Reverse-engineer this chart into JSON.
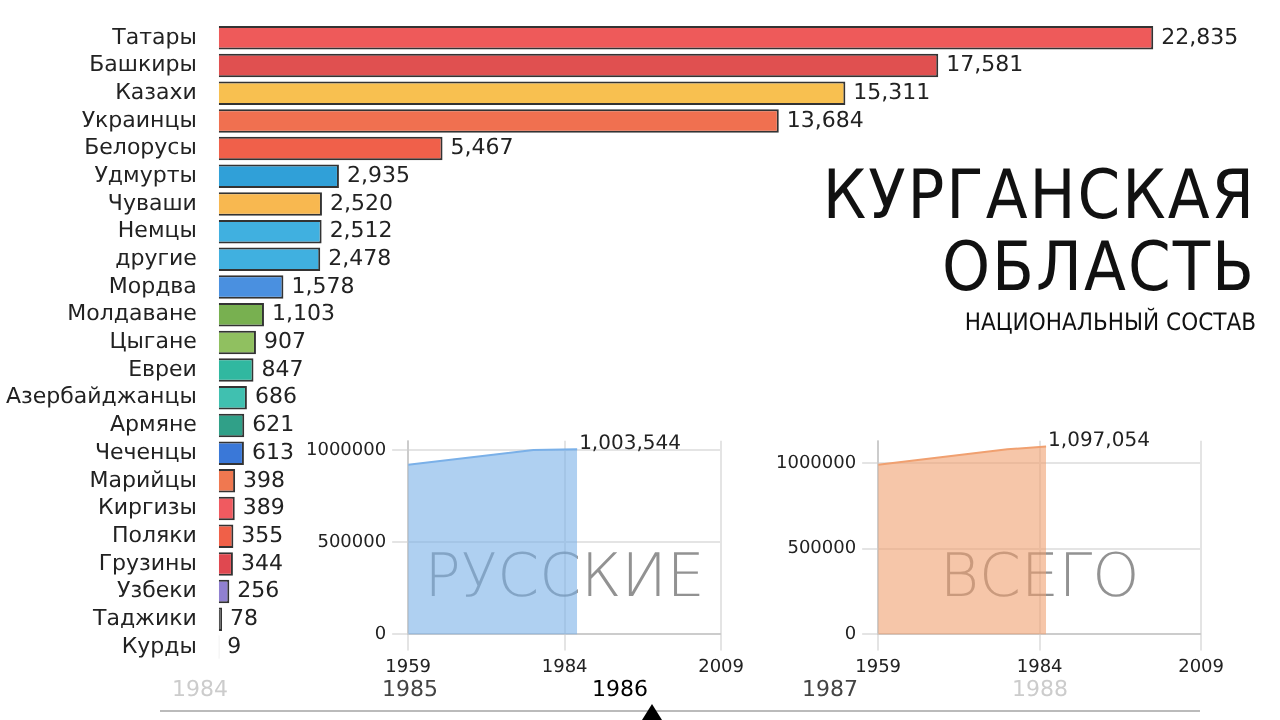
{
  "chart_data": [
    {
      "type": "bar",
      "orientation": "horizontal",
      "title": "КУРГАНСКАЯ ОБЛАСТЬ",
      "subtitle": "НАЦИОНАЛЬНЫЙ СОСТАВ",
      "categories": [
        "Татары",
        "Башкиры",
        "Казахи",
        "Украинцы",
        "Белорусы",
        "Удмурты",
        "Чуваши",
        "Немцы",
        "другие",
        "Мордва",
        "Молдаване",
        "Цыгане",
        "Евреи",
        "Азербайджанцы",
        "Армяне",
        "Чеченцы",
        "Марийцы",
        "Киргизы",
        "Поляки",
        "Грузины",
        "Узбеки",
        "Таджики",
        "Курды"
      ],
      "values": [
        22835,
        17581,
        15311,
        13684,
        5467,
        2935,
        2520,
        2512,
        2478,
        1578,
        1103,
        907,
        847,
        686,
        621,
        613,
        398,
        389,
        355,
        344,
        256,
        78,
        9
      ],
      "value_labels": [
        "22,835",
        "17,581",
        "15,311",
        "13,684",
        "5,467",
        "2,935",
        "2,520",
        "2,512",
        "2,478",
        "1,578",
        "1,103",
        "907",
        "847",
        "686",
        "621",
        "613",
        "398",
        "389",
        "355",
        "344",
        "256",
        "78",
        "9"
      ],
      "colors": [
        "#ee5a5a",
        "#e05050",
        "#f8c050",
        "#f07050",
        "#f0604a",
        "#30a0d8",
        "#f8b850",
        "#40b0e0",
        "#40b0e0",
        "#4a90e0",
        "#78b050",
        "#90c060",
        "#30b8a0",
        "#40c0b0",
        "#30a088",
        "#3a78d8",
        "#f07850",
        "#f05a60",
        "#f06048",
        "#e04850",
        "#9080d0",
        "#555555",
        "#555555"
      ],
      "xlim": [
        0,
        23000
      ],
      "tick_labels": "y",
      "grid": false,
      "legend": false,
      "annotations": [
        "1984",
        "1985",
        "1986",
        "1987",
        "1988"
      ]
    },
    {
      "type": "area",
      "title": "РУССКИЕ",
      "x": [
        1959,
        1979,
        1986
      ],
      "series": [
        {
          "color": "#7ab0e8",
          "values": [
            920000,
            1000000,
            1003544
          ],
          "value_labels": [
            null,
            null,
            "1,003,544"
          ]
        }
      ],
      "xlim": [
        1959,
        2009
      ],
      "xticks": [
        1959,
        1984,
        2009
      ],
      "ylim": [
        0,
        1050000
      ],
      "yticks": [
        0,
        500000,
        1000000
      ],
      "grid": true,
      "legend": false
    },
    {
      "type": "area",
      "title": "ВСЕГО",
      "x": [
        1959,
        1979,
        1985
      ],
      "series": [
        {
          "color": "#f0a070",
          "values": [
            990000,
            1080000,
            1097054
          ],
          "value_labels": [
            null,
            null,
            "1,097,054"
          ]
        }
      ],
      "xlim": [
        1959,
        2009
      ],
      "xticks": [
        1959,
        1984,
        2009
      ],
      "ylim": [
        0,
        1130000
      ],
      "yticks": [
        0,
        500000,
        1000000
      ],
      "grid": true,
      "legend": false
    }
  ]
}
